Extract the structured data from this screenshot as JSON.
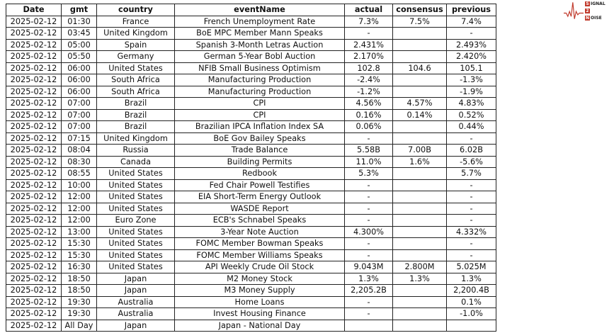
{
  "logo": {
    "line1": "IGNAL",
    "line2": "",
    "line3": "OISE",
    "letters": [
      "S",
      "2",
      "N"
    ],
    "text": "Signal 2 Noise",
    "color": "#c0392b"
  },
  "table": {
    "columns": [
      "Date",
      "gmt",
      "country",
      "eventName",
      "actual",
      "consensus",
      "previous"
    ],
    "rows": [
      [
        "2025-02-12",
        "01:30",
        "France",
        "French Unemployment Rate",
        "7.3%",
        "7.5%",
        "7.4%"
      ],
      [
        "2025-02-12",
        "03:45",
        "United Kingdom",
        "BoE MPC Member Mann Speaks",
        "-",
        "",
        "-"
      ],
      [
        "2025-02-12",
        "05:00",
        "Spain",
        "Spanish 3-Month Letras Auction",
        "2.431%",
        "",
        "2.493%"
      ],
      [
        "2025-02-12",
        "05:50",
        "Germany",
        "German 5-Year Bobl Auction",
        "2.170%",
        "",
        "2.420%"
      ],
      [
        "2025-02-12",
        "06:00",
        "United States",
        "NFIB Small Business Optimism",
        "102.8",
        "104.6",
        "105.1"
      ],
      [
        "2025-02-12",
        "06:00",
        "South Africa",
        "Manufacturing Production",
        "-2.4%",
        "",
        "-1.3%"
      ],
      [
        "2025-02-12",
        "06:00",
        "South Africa",
        "Manufacturing Production",
        "-1.2%",
        "",
        "-1.9%"
      ],
      [
        "2025-02-12",
        "07:00",
        "Brazil",
        "CPI",
        "4.56%",
        "4.57%",
        "4.83%"
      ],
      [
        "2025-02-12",
        "07:00",
        "Brazil",
        "CPI",
        "0.16%",
        "0.14%",
        "0.52%"
      ],
      [
        "2025-02-12",
        "07:00",
        "Brazil",
        "Brazilian IPCA Inflation Index SA",
        "0.06%",
        "",
        "0.44%"
      ],
      [
        "2025-02-12",
        "07:15",
        "United Kingdom",
        "BoE Gov Bailey Speaks",
        "-",
        "",
        "-"
      ],
      [
        "2025-02-12",
        "08:04",
        "Russia",
        "Trade Balance",
        "5.58B",
        "7.00B",
        "6.02B"
      ],
      [
        "2025-02-12",
        "08:30",
        "Canada",
        "Building Permits",
        "11.0%",
        "1.6%",
        "-5.6%"
      ],
      [
        "2025-02-12",
        "08:55",
        "United States",
        "Redbook",
        "5.3%",
        "",
        "5.7%"
      ],
      [
        "2025-02-12",
        "10:00",
        "United States",
        "Fed Chair Powell Testifies",
        "-",
        "",
        "-"
      ],
      [
        "2025-02-12",
        "12:00",
        "United States",
        "EIA Short-Term Energy Outlook",
        "-",
        "",
        "-"
      ],
      [
        "2025-02-12",
        "12:00",
        "United States",
        "WASDE Report",
        "-",
        "",
        "-"
      ],
      [
        "2025-02-12",
        "12:00",
        "Euro Zone",
        "ECB's Schnabel Speaks",
        "-",
        "",
        "-"
      ],
      [
        "2025-02-12",
        "13:00",
        "United States",
        "3-Year Note Auction",
        "4.300%",
        "",
        "4.332%"
      ],
      [
        "2025-02-12",
        "15:30",
        "United States",
        "FOMC Member Bowman Speaks",
        "-",
        "",
        "-"
      ],
      [
        "2025-02-12",
        "15:30",
        "United States",
        "FOMC Member Williams Speaks",
        "-",
        "",
        "-"
      ],
      [
        "2025-02-12",
        "16:30",
        "United States",
        "API Weekly Crude Oil Stock",
        "9.043M",
        "2.800M",
        "5.025M"
      ],
      [
        "2025-02-12",
        "18:50",
        "Japan",
        "M2 Money Stock",
        "1.3%",
        "1.3%",
        "1.3%"
      ],
      [
        "2025-02-12",
        "18:50",
        "Japan",
        "M3 Money Supply",
        "2,205.2B",
        "",
        "2,200.4B"
      ],
      [
        "2025-02-12",
        "19:30",
        "Australia",
        "Home Loans",
        "-",
        "",
        "0.1%"
      ],
      [
        "2025-02-12",
        "19:30",
        "Australia",
        "Invest Housing Finance",
        "-",
        "",
        "-1.0%"
      ],
      [
        "2025-02-12",
        "All Day",
        "Japan",
        "Japan - National Day",
        "",
        "",
        ""
      ]
    ]
  }
}
